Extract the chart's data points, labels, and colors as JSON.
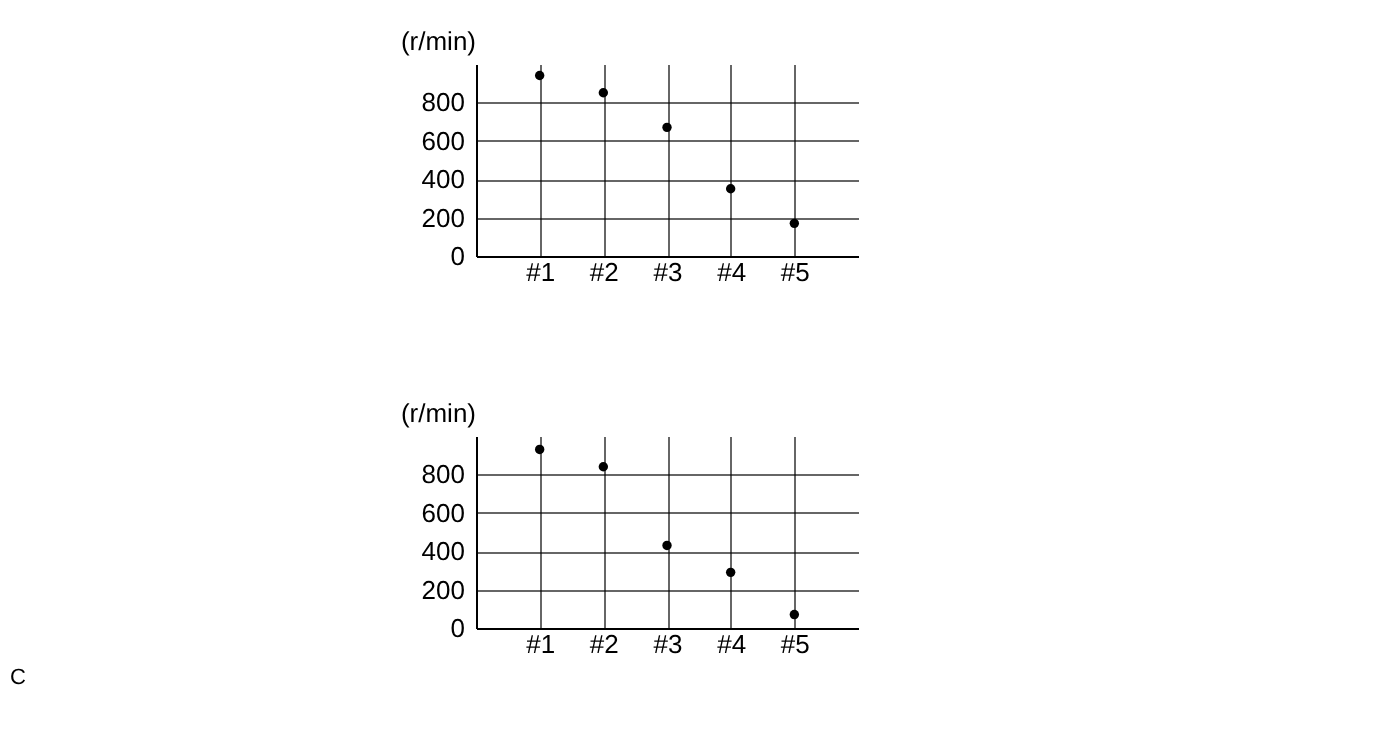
{
  "chart_data": [
    {
      "type": "scatter",
      "ylabel": "(r/min)",
      "categories": [
        "#1",
        "#2",
        "#3",
        "#4",
        "#5"
      ],
      "values": [
        940,
        850,
        670,
        350,
        170
      ],
      "color": "#000000",
      "ylim": [
        0,
        1000
      ],
      "yticks": [
        0,
        200,
        400,
        600,
        800
      ],
      "grid": true,
      "marker": "circle"
    },
    {
      "type": "scatter",
      "ylabel": "(r/min)",
      "categories": [
        "#1",
        "#2",
        "#3",
        "#4",
        "#5"
      ],
      "values": [
        930,
        840,
        430,
        290,
        70
      ],
      "color": "#000000",
      "ylim": [
        0,
        1000
      ],
      "yticks": [
        0,
        200,
        400,
        600,
        800
      ],
      "grid": true,
      "marker": "circle",
      "annotations": [
        "C"
      ]
    }
  ]
}
